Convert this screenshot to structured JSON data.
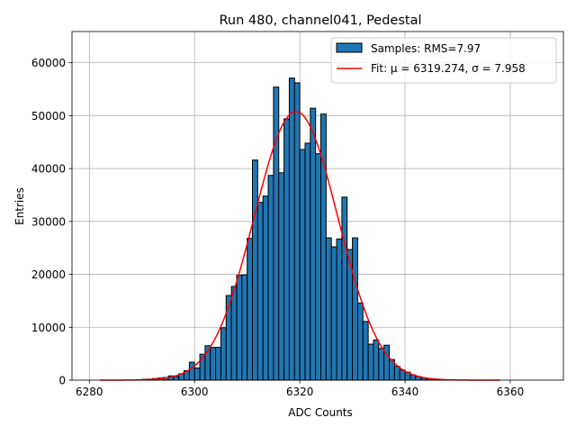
{
  "chart_data": {
    "type": "bar",
    "title": "Run 480, channel041, Pedestal",
    "xlabel": "ADC Counts",
    "ylabel": "Entries",
    "xlim": [
      6276.7,
      6370.1
    ],
    "ylim": [
      0,
      65900
    ],
    "xticks": [
      6280,
      6300,
      6320,
      6340,
      6360
    ],
    "yticks": [
      0,
      10000,
      20000,
      30000,
      40000,
      50000,
      60000
    ],
    "grid": true,
    "legend_position": "top-right",
    "bin_width": 1,
    "histogram": {
      "name": "Samples: RMS=7.97",
      "color": "#1f77b4",
      "bin_starts": [
        6289,
        6290,
        6291,
        6292,
        6293,
        6294,
        6295,
        6296,
        6297,
        6298,
        6299,
        6300,
        6301,
        6302,
        6303,
        6304,
        6305,
        6306,
        6307,
        6308,
        6309,
        6310,
        6311,
        6312,
        6313,
        6314,
        6315,
        6316,
        6317,
        6318,
        6319,
        6320,
        6321,
        6322,
        6323,
        6324,
        6325,
        6326,
        6327,
        6328,
        6329,
        6330,
        6331,
        6332,
        6333,
        6334,
        6335,
        6336,
        6337,
        6338,
        6339,
        6340,
        6341,
        6342,
        6343,
        6344,
        6345,
        6346,
        6347
      ],
      "values": [
        100,
        150,
        200,
        300,
        400,
        500,
        800,
        700,
        1200,
        1800,
        3400,
        2300,
        4900,
        6500,
        6200,
        6200,
        9900,
        16000,
        17700,
        19800,
        19900,
        26800,
        41600,
        33600,
        34800,
        38700,
        55400,
        39200,
        49400,
        57100,
        56200,
        43600,
        44800,
        51400,
        42800,
        50300,
        26900,
        25200,
        26700,
        34600,
        24700,
        26900,
        14600,
        11100,
        6800,
        7600,
        6000,
        6600,
        3900,
        2600,
        1900,
        1500,
        1000,
        700,
        400,
        300,
        200,
        100,
        50
      ]
    },
    "fit": {
      "name": "Fit: μ = 6319.274, σ = 7.958",
      "color": "#ff0000",
      "mu": 6319.274,
      "sigma": 7.958,
      "amplitude": 50800,
      "x_range": [
        6282,
        6358
      ]
    }
  }
}
